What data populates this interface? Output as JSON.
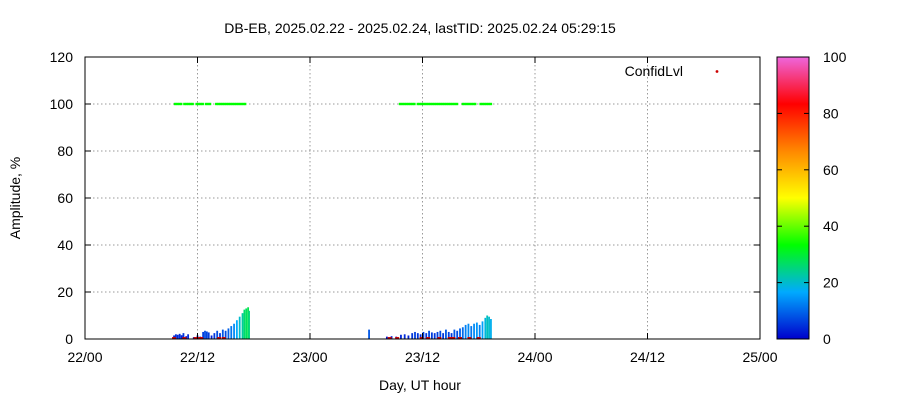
{
  "chart_data": {
    "type": "scatter",
    "title": "DB-EB, 2025.02.22 - 2025.02.24, lastTID: 2025.02.24 05:29:15",
    "xlabel": "Day, UT hour",
    "ylabel": "Amplitude, %",
    "x_unit": "hours since 22/00",
    "xlim": [
      0,
      72
    ],
    "ylim": [
      0,
      120
    ],
    "x_tick_labels": [
      "22/00",
      "22/12",
      "23/00",
      "23/12",
      "24/00",
      "24/12",
      "25/00"
    ],
    "x_tick_values": [
      0,
      12,
      24,
      36,
      48,
      60,
      72
    ],
    "y_tick_values": [
      0,
      20,
      40,
      60,
      80,
      100,
      120
    ],
    "grid": true,
    "legend": {
      "label": "ConfidLvl",
      "position": "top-right"
    },
    "colorbar": {
      "ticks": [
        0,
        20,
        40,
        60,
        80,
        100
      ],
      "range": [
        0,
        100
      ],
      "stops": [
        "#0000cc",
        "#00aaff",
        "#00ff00",
        "#ffff00",
        "#ff8800",
        "#ff0000",
        "#ee66dd"
      ]
    },
    "series": [
      {
        "kind": "confidence",
        "y": 100,
        "color": "#00ff00",
        "segments": [
          [
            9.6,
            10.4
          ],
          [
            10.6,
            11.5
          ],
          [
            11.9,
            12.6
          ],
          [
            12.9,
            13.5
          ],
          [
            14.0,
            17.2
          ],
          [
            33.6,
            35.2
          ],
          [
            35.5,
            39.8
          ],
          [
            40.3,
            41.8
          ],
          [
            42.2,
            43.3
          ]
        ]
      },
      {
        "kind": "amplitude",
        "color_scale": "confidlvl",
        "bars": [
          [
            9.5,
            1.5
          ],
          [
            9.7,
            2.0
          ],
          [
            9.9,
            1.8
          ],
          [
            10.1,
            2.2
          ],
          [
            10.3,
            1.6
          ],
          [
            10.5,
            2.5
          ],
          [
            10.8,
            1.2
          ],
          [
            11.0,
            2.0
          ],
          [
            11.6,
            0.8
          ],
          [
            12.0,
            1.5
          ],
          [
            12.3,
            1.0
          ],
          [
            12.6,
            3.0
          ],
          [
            12.8,
            3.5
          ],
          [
            13.0,
            3.2
          ],
          [
            13.2,
            2.8
          ],
          [
            13.5,
            1.5
          ],
          [
            13.8,
            2.5
          ],
          [
            14.1,
            3.5
          ],
          [
            14.4,
            2.5
          ],
          [
            14.7,
            4.0
          ],
          [
            15.0,
            3.5
          ],
          [
            15.3,
            4.5
          ],
          [
            15.6,
            5.5
          ],
          [
            15.9,
            6.5
          ],
          [
            16.2,
            8.0
          ],
          [
            16.5,
            9.5
          ],
          [
            16.8,
            11.0
          ],
          [
            17.0,
            12.5
          ],
          [
            17.2,
            13.0
          ],
          [
            17.4,
            13.5
          ],
          [
            17.5,
            12.0
          ],
          [
            30.3,
            4.0
          ],
          [
            32.2,
            1.0
          ],
          [
            32.7,
            1.2
          ],
          [
            33.2,
            1.0
          ],
          [
            33.7,
            1.8
          ],
          [
            34.1,
            2.0
          ],
          [
            34.5,
            1.5
          ],
          [
            34.9,
            2.5
          ],
          [
            35.2,
            3.0
          ],
          [
            35.5,
            2.5
          ],
          [
            35.8,
            2.0
          ],
          [
            36.1,
            3.0
          ],
          [
            36.4,
            2.5
          ],
          [
            36.7,
            3.5
          ],
          [
            37.0,
            2.8
          ],
          [
            37.3,
            2.5
          ],
          [
            37.6,
            3.0
          ],
          [
            37.9,
            3.5
          ],
          [
            38.2,
            2.5
          ],
          [
            38.5,
            4.0
          ],
          [
            38.8,
            3.0
          ],
          [
            39.1,
            2.5
          ],
          [
            39.4,
            4.0
          ],
          [
            39.7,
            3.5
          ],
          [
            40.0,
            4.5
          ],
          [
            40.3,
            5.0
          ],
          [
            40.6,
            6.0
          ],
          [
            40.9,
            6.5
          ],
          [
            41.2,
            5.5
          ],
          [
            41.5,
            6.5
          ],
          [
            41.8,
            7.0
          ],
          [
            42.1,
            6.0
          ],
          [
            42.4,
            7.5
          ],
          [
            42.7,
            9.0
          ],
          [
            42.9,
            10.0
          ],
          [
            43.1,
            9.5
          ],
          [
            43.3,
            8.5
          ]
        ]
      },
      {
        "kind": "low-confidence",
        "color": "#cc0000",
        "points": [
          [
            9.5,
            0.4
          ],
          [
            10.6,
            0.4
          ],
          [
            11.8,
            0.4
          ],
          [
            12.1,
            0.4
          ],
          [
            12.4,
            0.4
          ],
          [
            14.3,
            0.4
          ],
          [
            14.8,
            0.4
          ],
          [
            32.5,
            0.4
          ],
          [
            33.3,
            0.4
          ],
          [
            35.9,
            0.4
          ],
          [
            36.6,
            0.4
          ],
          [
            37.8,
            0.4
          ],
          [
            38.9,
            0.4
          ],
          [
            39.3,
            0.4
          ],
          [
            40.0,
            0.4
          ],
          [
            41.0,
            0.4
          ],
          [
            42.0,
            0.4
          ]
        ]
      }
    ]
  }
}
